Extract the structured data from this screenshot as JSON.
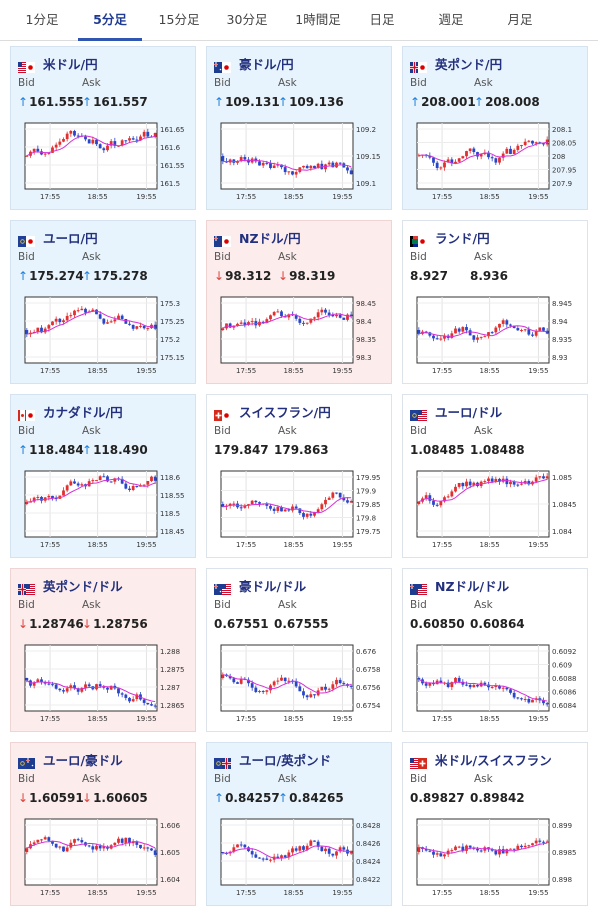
{
  "tabs": [
    "1分足",
    "5分足",
    "15分足",
    "30分足",
    "1時間足",
    "日足",
    "週足",
    "月足"
  ],
  "active_tab": 1,
  "labels": {
    "bid": "Bid",
    "ask": "Ask"
  },
  "colors": {
    "up_arrow": "#1e7fd8",
    "down_arrow": "#e0413d",
    "candle_up": "#e03030",
    "candle_down": "#2a46c8",
    "moving_average": "#d630d6"
  },
  "x_ticks": [
    "17:55",
    "18:55",
    "19:55"
  ],
  "cards": [
    {
      "pair": "米ドル/円",
      "flag": "us-jp",
      "dir": "up",
      "bid": "161.555",
      "ask": "161.557",
      "y_ticks": [
        "161.65",
        "161.6",
        "161.55",
        "161.5"
      ]
    },
    {
      "pair": "豪ドル/円",
      "flag": "au-jp",
      "dir": "up",
      "bid": "109.131",
      "ask": "109.136",
      "y_ticks": [
        "109.2",
        "109.15",
        "109.1"
      ]
    },
    {
      "pair": "英ポンド/円",
      "flag": "gb-jp",
      "dir": "up",
      "bid": "208.001",
      "ask": "208.008",
      "y_ticks": [
        "208.1",
        "208.05",
        "208",
        "207.95",
        "207.9"
      ]
    },
    {
      "pair": "ユーロ/円",
      "flag": "eu-jp",
      "dir": "up",
      "bid": "175.274",
      "ask": "175.278",
      "y_ticks": [
        "175.3",
        "175.25",
        "175.2",
        "175.15"
      ]
    },
    {
      "pair": "NZドル/円",
      "flag": "nz-jp",
      "dir": "down",
      "bid": "98.312",
      "ask": "98.319",
      "y_ticks": [
        "98.45",
        "98.4",
        "98.35",
        "98.3"
      ]
    },
    {
      "pair": "ランド/円",
      "flag": "za-jp",
      "dir": "none",
      "bid": "8.927",
      "ask": "8.936",
      "y_ticks": [
        "8.945",
        "8.94",
        "8.935",
        "8.93"
      ]
    },
    {
      "pair": "カナダドル/円",
      "flag": "ca-jp",
      "dir": "up",
      "bid": "118.484",
      "ask": "118.490",
      "y_ticks": [
        "118.6",
        "118.55",
        "118.5",
        "118.45"
      ]
    },
    {
      "pair": "スイスフラン/円",
      "flag": "ch-jp",
      "dir": "none",
      "bid": "179.847",
      "ask": "179.863",
      "y_ticks": [
        "179.95",
        "179.9",
        "179.85",
        "179.8",
        "179.75"
      ]
    },
    {
      "pair": "ユーロ/ドル",
      "flag": "eu-us",
      "dir": "none",
      "bid": "1.08485",
      "ask": "1.08488",
      "y_ticks": [
        "1.085",
        "1.0845",
        "1.084"
      ]
    },
    {
      "pair": "英ポンド/ドル",
      "flag": "gb-us",
      "dir": "down",
      "bid": "1.28746",
      "ask": "1.28756",
      "y_ticks": [
        "1.288",
        "1.2875",
        "1.287",
        "1.2865"
      ]
    },
    {
      "pair": "豪ドル/ドル",
      "flag": "au-us",
      "dir": "none",
      "bid": "0.67551",
      "ask": "0.67555",
      "y_ticks": [
        "0.676",
        "0.6758",
        "0.6756",
        "0.6754"
      ]
    },
    {
      "pair": "NZドル/ドル",
      "flag": "nz-us",
      "dir": "none",
      "bid": "0.60850",
      "ask": "0.60864",
      "y_ticks": [
        "0.6092",
        "0.609",
        "0.6088",
        "0.6086",
        "0.6084"
      ]
    },
    {
      "pair": "ユーロ/豪ドル",
      "flag": "eu-au",
      "dir": "down",
      "bid": "1.60591",
      "ask": "1.60605",
      "y_ticks": [
        "1.606",
        "1.605",
        "1.604"
      ]
    },
    {
      "pair": "ユーロ/英ポンド",
      "flag": "eu-gb",
      "dir": "up",
      "bid": "0.84257",
      "ask": "0.84265",
      "y_ticks": [
        "0.8428",
        "0.8426",
        "0.8424",
        "0.8422"
      ]
    },
    {
      "pair": "米ドル/スイスフラン",
      "flag": "us-ch",
      "dir": "none",
      "bid": "0.89827",
      "ask": "0.89842",
      "y_ticks": [
        "0.899",
        "0.8985",
        "0.898"
      ]
    }
  ]
}
